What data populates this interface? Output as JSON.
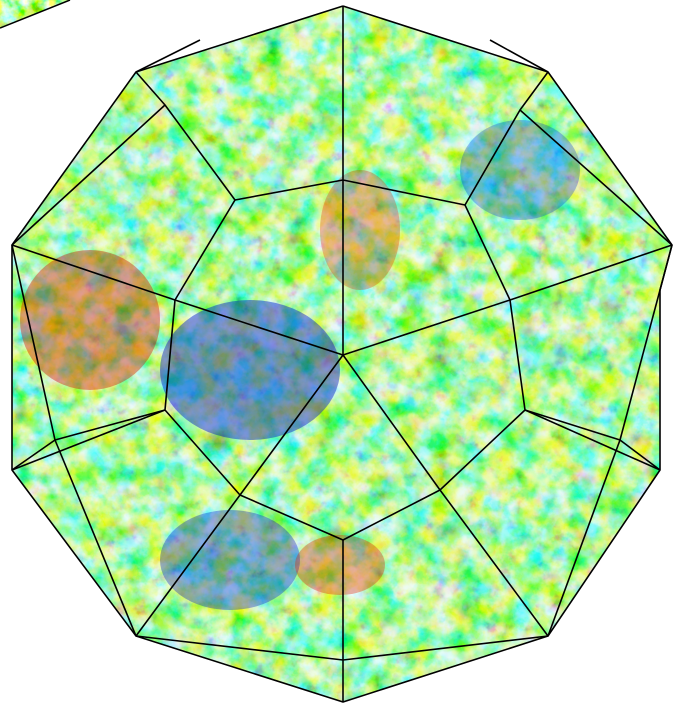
{
  "figure": {
    "subject_icon": "polyhedron-sky-map",
    "colormap": [
      "#00008b",
      "#0000ff",
      "#0080ff",
      "#00d0ff",
      "#40ffd0",
      "#c0ff40",
      "#ffff00",
      "#ff9000",
      "#ff2000",
      "#a00000"
    ],
    "base_color": "#2bd9e6",
    "edge_color": "#000000"
  }
}
